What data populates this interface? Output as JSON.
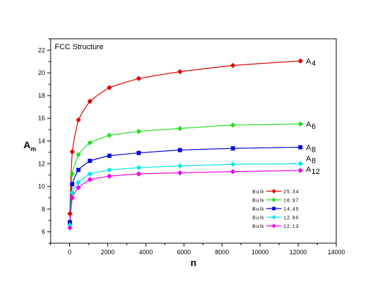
{
  "chart_data": {
    "type": "scatter",
    "title": "",
    "xlabel": "n",
    "ylabel_base": "A",
    "ylabel_sub": "m",
    "xlim": [
      -1000,
      14000
    ],
    "ylim": [
      5,
      23
    ],
    "xticks": [
      0,
      2000,
      4000,
      6000,
      8000,
      10000,
      12000,
      14000
    ],
    "yticks": [
      6,
      8,
      10,
      12,
      14,
      16,
      18,
      20,
      22
    ],
    "grid": false,
    "annotation_text": "FCC Structure",
    "legend_position": "bottom-right",
    "series": [
      {
        "name": "Bulk",
        "bulk": "25.34",
        "label_base": "A",
        "label_sub": "4",
        "color": "#e00000",
        "marker": "diamond",
        "x": [
          13,
          135,
          459,
          1063,
          2085,
          3629,
          5793,
          8571,
          12117
        ],
        "y": [
          7.6,
          13.05,
          15.85,
          17.5,
          18.7,
          19.5,
          20.1,
          20.65,
          21.05
        ]
      },
      {
        "name": "Bulk",
        "bulk": "16.97",
        "label_base": "A",
        "label_sub": "6",
        "color": "#22dd22",
        "marker": "diamond",
        "x": [
          13,
          135,
          459,
          1063,
          2085,
          3629,
          5793,
          8571,
          12117
        ],
        "y": [
          6.9,
          11.1,
          12.8,
          13.85,
          14.5,
          14.85,
          15.1,
          15.4,
          15.5
        ]
      },
      {
        "name": "Bulk",
        "bulk": "14.45",
        "label_base": "A",
        "label_sub": "8",
        "color": "#0000dd",
        "marker": "square",
        "x": [
          13,
          135,
          459,
          1063,
          2085,
          3629,
          5793,
          8571,
          12117
        ],
        "y": [
          6.85,
          10.2,
          11.45,
          12.25,
          12.7,
          12.95,
          13.2,
          13.35,
          13.45
        ]
      },
      {
        "name": "Bulk",
        "bulk": "12.80",
        "label_base": "A",
        "label_sub": "8",
        "color": "#00e8e8",
        "marker": "diamond",
        "x": [
          13,
          135,
          459,
          1063,
          2085,
          3629,
          5793,
          8571,
          12117
        ],
        "y": [
          6.6,
          9.45,
          10.35,
          11.1,
          11.45,
          11.65,
          11.8,
          11.95,
          12.0
        ]
      },
      {
        "name": "Bulk",
        "bulk": "12.13",
        "label_base": "A",
        "label_sub": "12",
        "color": "#ee00ee",
        "marker": "diamond",
        "x": [
          13,
          135,
          459,
          1063,
          2085,
          3629,
          5793,
          8571,
          12117
        ],
        "y": [
          6.35,
          9.0,
          9.9,
          10.6,
          10.9,
          11.1,
          11.2,
          11.3,
          11.4
        ]
      }
    ]
  }
}
